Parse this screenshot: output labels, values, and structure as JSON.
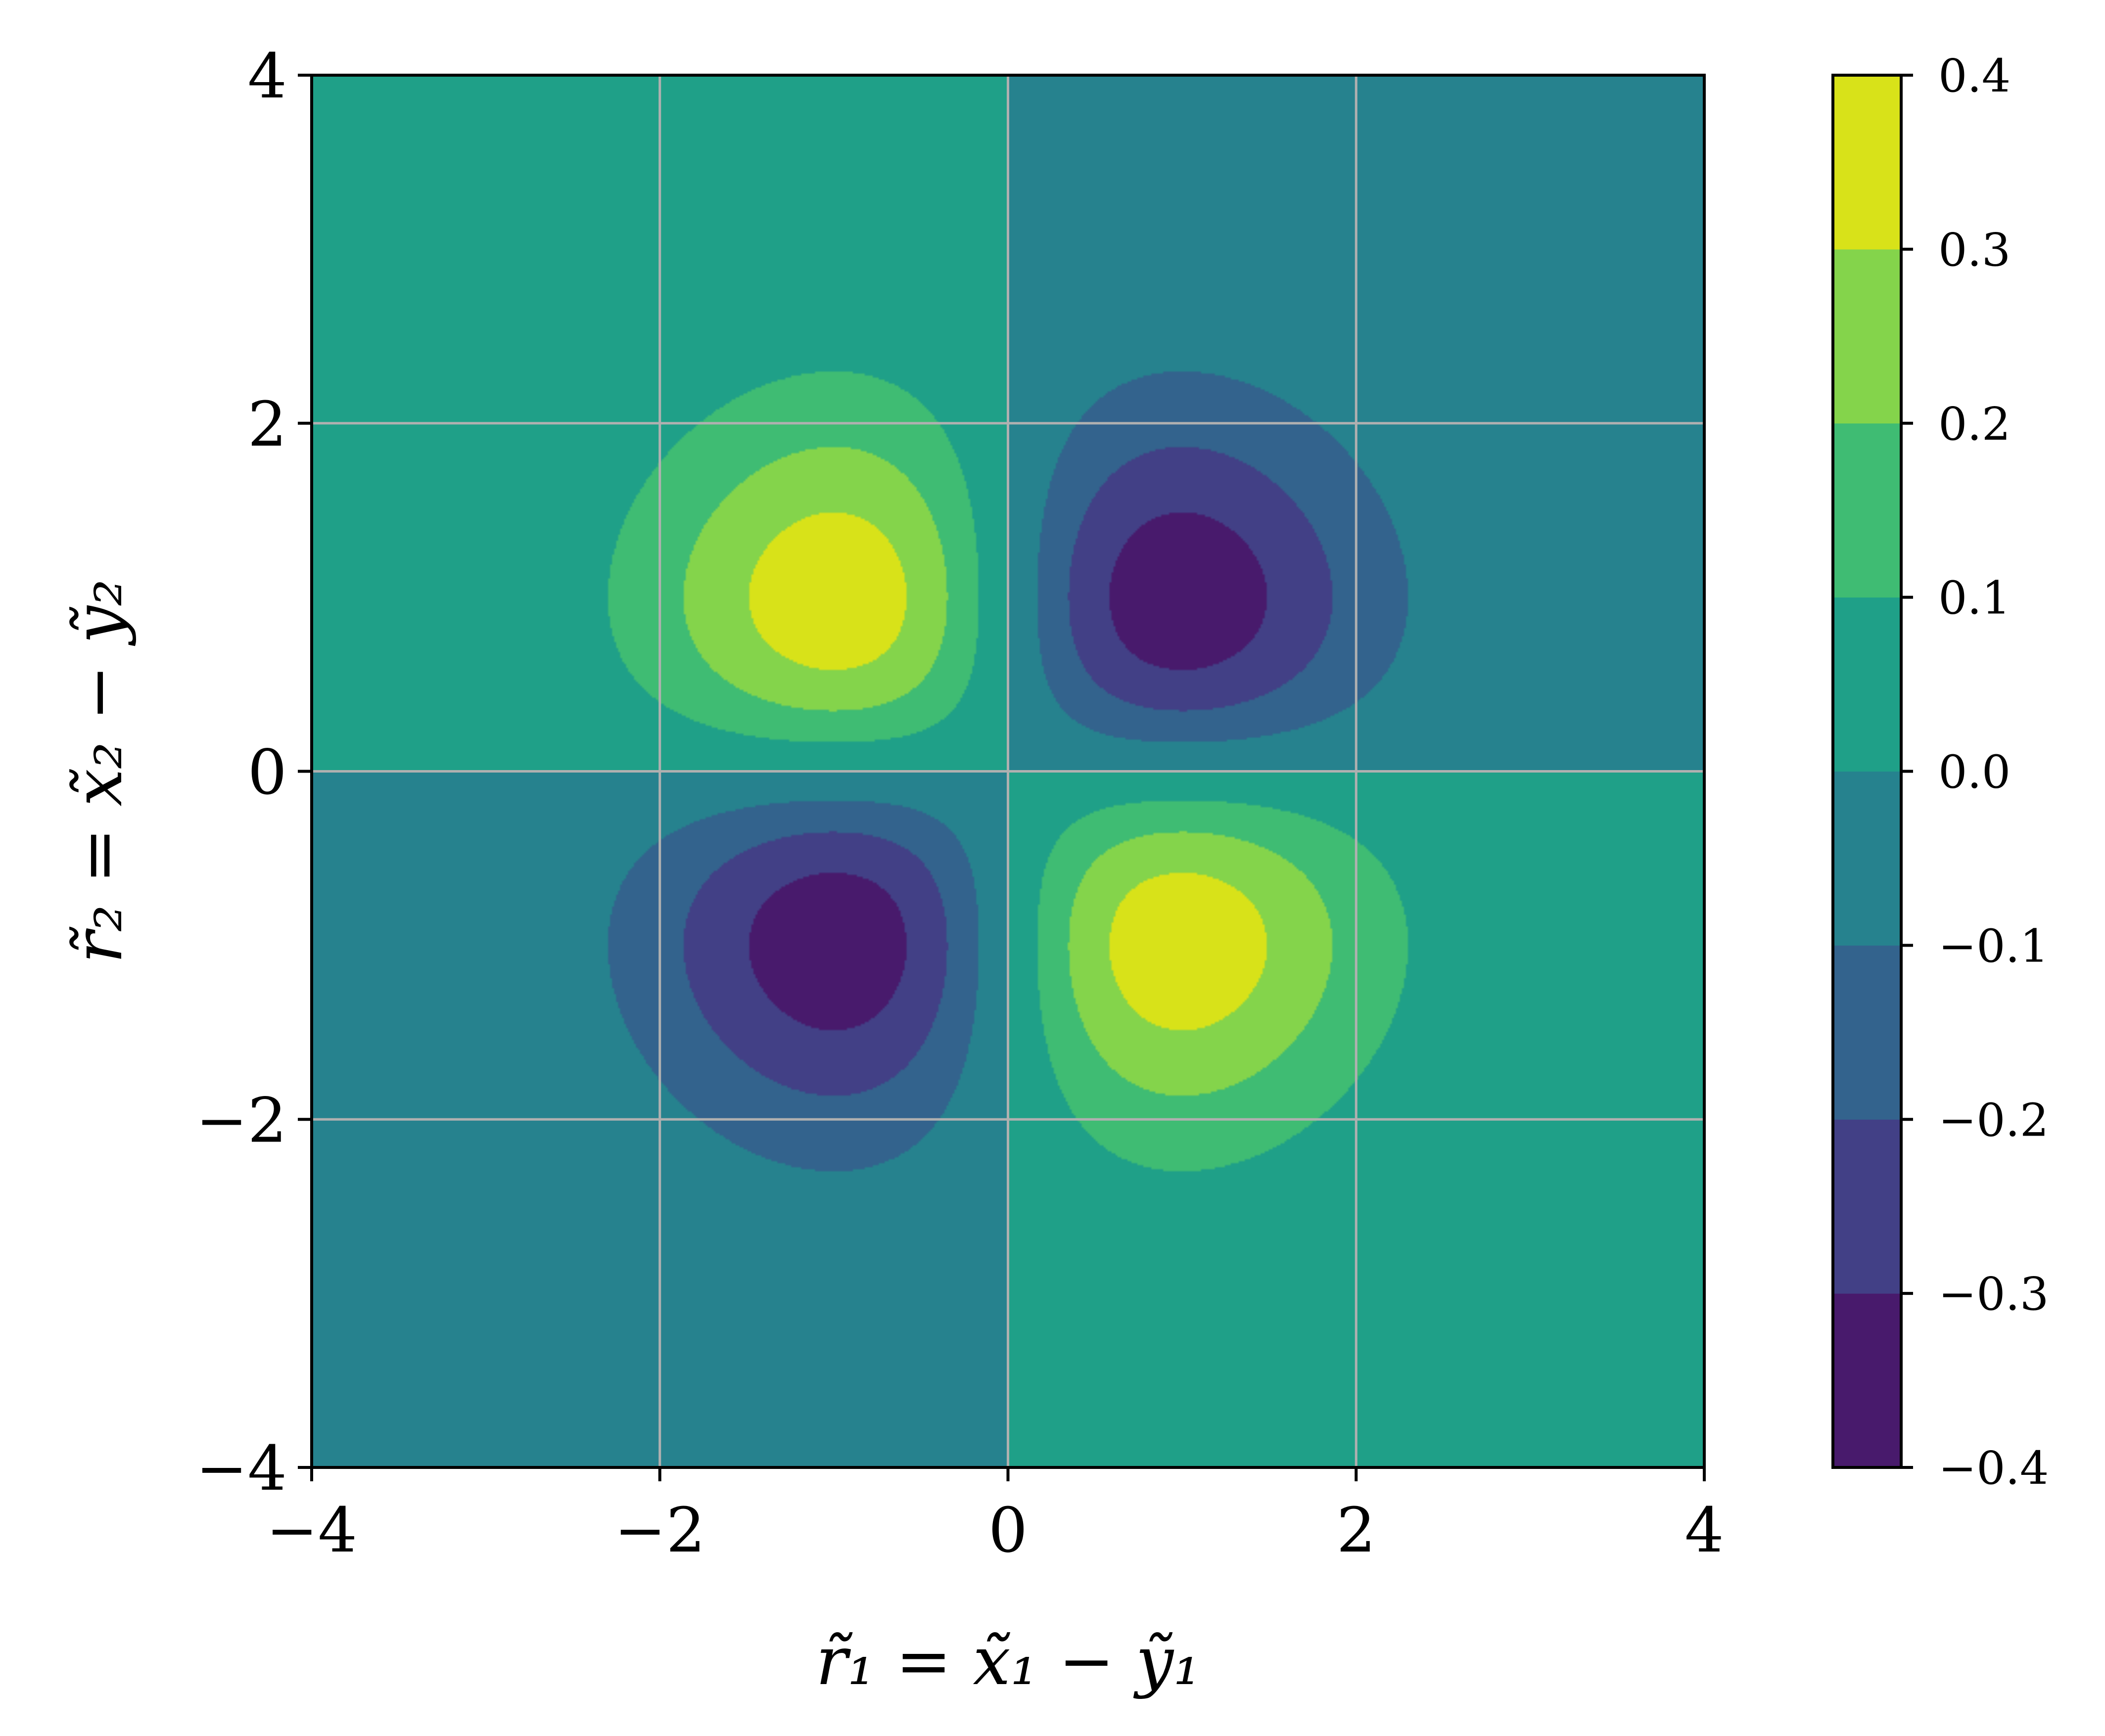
{
  "chart_data": {
    "type": "contourf",
    "xlabel": "r̃₁ = x̃₁ − ỹ₁",
    "ylabel": "r̃₂ = x̃₂ − ỹ₂",
    "xlim": [
      -4,
      4
    ],
    "ylim": [
      -4,
      4
    ],
    "xticks": [
      -4,
      -2,
      0,
      2,
      4
    ],
    "yticks": [
      -4,
      -2,
      0,
      2,
      4
    ],
    "xtick_labels": [
      "−4",
      "−2",
      "0",
      "2",
      "4"
    ],
    "ytick_labels": [
      "−4",
      "−2",
      "0",
      "2",
      "4"
    ],
    "grid": true,
    "colormap": "viridis",
    "levels": [
      -0.4,
      -0.3,
      -0.2,
      -0.1,
      0.0,
      0.1,
      0.2,
      0.3,
      0.4
    ],
    "level_colors": [
      "#481a6c",
      "#424086",
      "#33638d",
      "#26828e",
      "#1fa088",
      "#3fbc73",
      "#84d44b",
      "#d8e219"
    ],
    "colorbar_tick_labels": [
      "−0.4",
      "−0.3",
      "−0.2",
      "−0.1",
      "0.0",
      "0.1",
      "0.2",
      "0.3",
      "0.4"
    ],
    "lobes": [
      {
        "center": [
          -1,
          1
        ],
        "sign": 1,
        "peak": 0.37
      },
      {
        "center": [
          1,
          1
        ],
        "sign": -1,
        "peak": 0.37
      },
      {
        "center": [
          -1,
          -1
        ],
        "sign": -1,
        "peak": 0.37
      },
      {
        "center": [
          1,
          -1
        ],
        "sign": 1,
        "peak": 0.37
      }
    ]
  },
  "colors": {
    "grid": "#b0b0b0",
    "axes": "#000000"
  }
}
